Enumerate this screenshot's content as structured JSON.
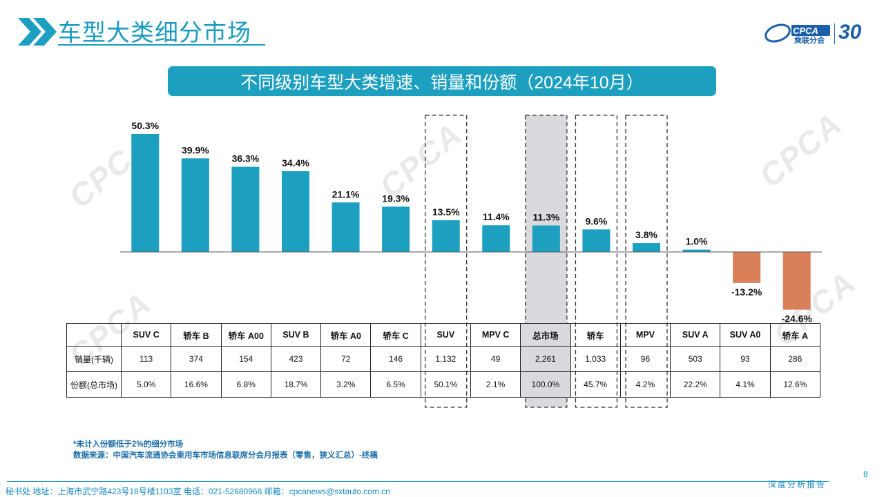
{
  "page_title": "车型大类细分市场",
  "chart_title": "不同级别车型大类增速、销量和份额（2024年10月）",
  "brand": {
    "cpca_text": "CPCA",
    "cpca_sub": "乘联分会",
    "anniversary": "30",
    "accent": "#1d9fc0"
  },
  "watermark": "CPCA",
  "colors": {
    "positive": "#1d9fc0",
    "negative": "#d9805a",
    "highlight_bg": "#d9d9de",
    "title": "#1a9bbf"
  },
  "chart_data": {
    "type": "bar",
    "title": "不同级别车型大类增速、销量和份额（2024年10月）",
    "categories": [
      "SUV C",
      "轿车 B",
      "轿车 A00",
      "SUV B",
      "轿车 A0",
      "轿车 C",
      "SUV",
      "MPV C",
      "总市场",
      "轿车",
      "MPV",
      "SUV A",
      "SUV A0",
      "轿车 A"
    ],
    "values": [
      50.3,
      39.9,
      36.3,
      34.4,
      21.1,
      19.3,
      13.5,
      11.4,
      11.3,
      9.6,
      3.8,
      1.0,
      -13.2,
      -24.6
    ],
    "labels": [
      "50.3%",
      "39.9%",
      "36.3%",
      "34.4%",
      "21.1%",
      "19.3%",
      "13.5%",
      "11.4%",
      "11.3%",
      "9.6%",
      "3.8%",
      "1.0%",
      "-13.2%",
      "-24.6%"
    ],
    "unit": "%",
    "ylim": [
      -28,
      55
    ],
    "dashed_boxes": [
      "SUV",
      "总市场",
      "轿车",
      "MPV"
    ],
    "highlighted": "总市场"
  },
  "table": {
    "row_labels": [
      "销量(千辆)",
      "份额(总市场)"
    ],
    "sales": [
      "113",
      "374",
      "154",
      "423",
      "72",
      "146",
      "1,132",
      "49",
      "2,261",
      "1,033",
      "96",
      "503",
      "93",
      "286"
    ],
    "share": [
      "5.0%",
      "16.6%",
      "6.8%",
      "18.7%",
      "3.2%",
      "6.5%",
      "50.1%",
      "2.1%",
      "100.0%",
      "45.7%",
      "4.2%",
      "22.2%",
      "4.1%",
      "12.6%"
    ]
  },
  "notes": {
    "line1": "*未计入份额低于2%的细分市场",
    "line2": "数据来源：中国汽车流通协会乘用车市场信息联席分会月报表（零售，狭义汇总）-终稿"
  },
  "footer": {
    "text": "秘书处   地址：上海市武宁路423号18号楼1103室   电话：021-52680968   邮箱：cpcanews@sxtauto.com.cn",
    "report_label": "深度分析报告",
    "page": "8"
  }
}
